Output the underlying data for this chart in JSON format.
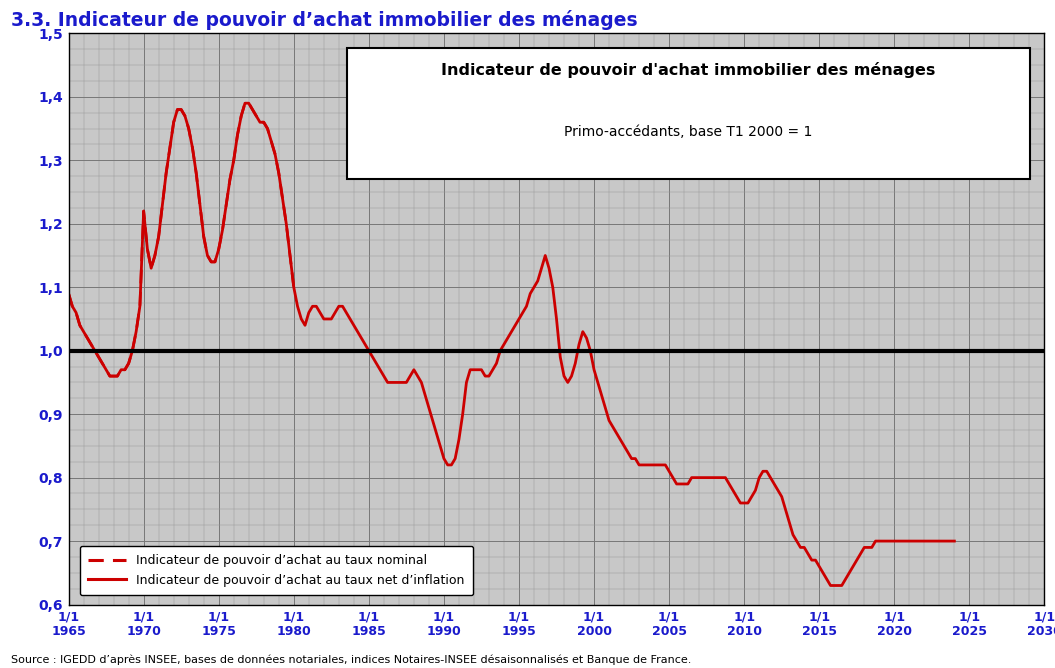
{
  "title_main": "3.3. Indicateur de pouvoir d’achat immobilier des ménages",
  "box_title": "Indicateur de pouvoir d'achat immobilier des ménages",
  "box_subtitle": "Primo-accédants, base T1 2000 = 1",
  "source": "Source : IGEDD d’après INSEE, bases de données notariales, indices Notaires-INSEE désaisonnalisés et Banque de France.",
  "xlim": [
    1965.0,
    2030.0
  ],
  "ylim": [
    0.6,
    1.5
  ],
  "yticks": [
    0.6,
    0.7,
    0.8,
    0.9,
    1.0,
    1.1,
    1.2,
    1.3,
    1.4,
    1.5
  ],
  "xticks": [
    1965,
    1970,
    1975,
    1980,
    1985,
    1990,
    1995,
    2000,
    2005,
    2010,
    2015,
    2020,
    2025,
    2030
  ],
  "background_color": "#c8c8c8",
  "line_color": "#cc0000",
  "hline_color": "#000000",
  "legend_label_dashed": "Indicateur de pouvoir d’achat au taux nominal",
  "legend_label_solid": "Indicateur de pouvoir d’achat au taux net d’inflation",
  "nominal_x": [
    1965.0,
    1965.25,
    1965.5,
    1965.75,
    1966.0,
    1966.25,
    1966.5,
    1966.75,
    1967.0,
    1967.25,
    1967.5,
    1967.75,
    1968.0,
    1968.25,
    1968.5,
    1968.75,
    1969.0,
    1969.25,
    1969.5,
    1969.75,
    1970.0,
    1970.25,
    1970.5,
    1970.75,
    1971.0,
    1971.25,
    1971.5,
    1971.75,
    1972.0,
    1972.25,
    1972.5,
    1972.75,
    1973.0,
    1973.25,
    1973.5,
    1973.75,
    1974.0,
    1974.25,
    1974.5,
    1974.75,
    1975.0,
    1975.25,
    1975.5,
    1975.75,
    1976.0,
    1976.25,
    1976.5,
    1976.75,
    1977.0,
    1977.25,
    1977.5,
    1977.75,
    1978.0,
    1978.25,
    1978.5,
    1978.75,
    1979.0,
    1979.25,
    1979.5,
    1979.75,
    1980.0
  ],
  "nominal_y": [
    1.09,
    1.07,
    1.06,
    1.04,
    1.03,
    1.02,
    1.01,
    1.0,
    0.99,
    0.98,
    0.97,
    0.96,
    0.96,
    0.96,
    0.97,
    0.97,
    0.98,
    1.0,
    1.03,
    1.07,
    1.22,
    1.16,
    1.13,
    1.15,
    1.18,
    1.23,
    1.28,
    1.32,
    1.36,
    1.38,
    1.38,
    1.37,
    1.35,
    1.32,
    1.28,
    1.23,
    1.18,
    1.15,
    1.14,
    1.14,
    1.16,
    1.19,
    1.23,
    1.27,
    1.3,
    1.34,
    1.37,
    1.39,
    1.39,
    1.38,
    1.37,
    1.36,
    1.36,
    1.35,
    1.33,
    1.31,
    1.28,
    1.24,
    1.2,
    1.15,
    1.1
  ],
  "real_x": [
    1965.0,
    1965.25,
    1965.5,
    1965.75,
    1966.0,
    1966.25,
    1966.5,
    1966.75,
    1967.0,
    1967.25,
    1967.5,
    1967.75,
    1968.0,
    1968.25,
    1968.5,
    1968.75,
    1969.0,
    1969.25,
    1969.5,
    1969.75,
    1970.0,
    1970.25,
    1970.5,
    1970.75,
    1971.0,
    1971.25,
    1971.5,
    1971.75,
    1972.0,
    1972.25,
    1972.5,
    1972.75,
    1973.0,
    1973.25,
    1973.5,
    1973.75,
    1974.0,
    1974.25,
    1974.5,
    1974.75,
    1975.0,
    1975.25,
    1975.5,
    1975.75,
    1976.0,
    1976.25,
    1976.5,
    1976.75,
    1977.0,
    1977.25,
    1977.5,
    1977.75,
    1978.0,
    1978.25,
    1978.5,
    1978.75,
    1979.0,
    1979.25,
    1979.5,
    1979.75,
    1980.0,
    1980.25,
    1980.5,
    1980.75,
    1981.0,
    1981.25,
    1981.5,
    1981.75,
    1982.0,
    1982.25,
    1982.5,
    1982.75,
    1983.0,
    1983.25,
    1983.5,
    1983.75,
    1984.0,
    1984.25,
    1984.5,
    1984.75,
    1985.0,
    1985.25,
    1985.5,
    1985.75,
    1986.0,
    1986.25,
    1986.5,
    1986.75,
    1987.0,
    1987.25,
    1987.5,
    1987.75,
    1988.0,
    1988.25,
    1988.5,
    1988.75,
    1989.0,
    1989.25,
    1989.5,
    1989.75,
    1990.0,
    1990.25,
    1990.5,
    1990.75,
    1991.0,
    1991.25,
    1991.5,
    1991.75,
    1992.0,
    1992.25,
    1992.5,
    1992.75,
    1993.0,
    1993.25,
    1993.5,
    1993.75,
    1994.0,
    1994.25,
    1994.5,
    1994.75,
    1995.0,
    1995.25,
    1995.5,
    1995.75,
    1996.0,
    1996.25,
    1996.5,
    1996.75,
    1997.0,
    1997.25,
    1997.5,
    1997.75,
    1998.0,
    1998.25,
    1998.5,
    1998.75,
    1999.0,
    1999.25,
    1999.5,
    1999.75,
    2000.0,
    2000.25,
    2000.5,
    2000.75,
    2001.0,
    2001.25,
    2001.5,
    2001.75,
    2002.0,
    2002.25,
    2002.5,
    2002.75,
    2003.0,
    2003.25,
    2003.5,
    2003.75,
    2004.0,
    2004.25,
    2004.5,
    2004.75,
    2005.0,
    2005.25,
    2005.5,
    2005.75,
    2006.0,
    2006.25,
    2006.5,
    2006.75,
    2007.0,
    2007.25,
    2007.5,
    2007.75,
    2008.0,
    2008.25,
    2008.5,
    2008.75,
    2009.0,
    2009.25,
    2009.5,
    2009.75,
    2010.0,
    2010.25,
    2010.5,
    2010.75,
    2011.0,
    2011.25,
    2011.5,
    2011.75,
    2012.0,
    2012.25,
    2012.5,
    2012.75,
    2013.0,
    2013.25,
    2013.5,
    2013.75,
    2014.0,
    2014.25,
    2014.5,
    2014.75,
    2015.0,
    2015.25,
    2015.5,
    2015.75,
    2016.0,
    2016.25,
    2016.5,
    2016.75,
    2017.0,
    2017.25,
    2017.5,
    2017.75,
    2018.0,
    2018.25,
    2018.5,
    2018.75,
    2019.0,
    2019.25,
    2019.5,
    2019.75,
    2020.0,
    2020.25,
    2020.5,
    2020.75,
    2021.0,
    2021.25,
    2021.5,
    2021.75,
    2022.0,
    2022.25,
    2022.5,
    2022.75,
    2023.0,
    2023.25,
    2023.5,
    2023.75,
    2024.0
  ],
  "real_y": [
    1.09,
    1.07,
    1.06,
    1.04,
    1.03,
    1.02,
    1.01,
    1.0,
    0.99,
    0.98,
    0.97,
    0.96,
    0.96,
    0.96,
    0.97,
    0.97,
    0.98,
    1.0,
    1.03,
    1.07,
    1.22,
    1.16,
    1.13,
    1.15,
    1.18,
    1.23,
    1.28,
    1.32,
    1.36,
    1.38,
    1.38,
    1.37,
    1.35,
    1.32,
    1.28,
    1.23,
    1.18,
    1.15,
    1.14,
    1.14,
    1.16,
    1.19,
    1.23,
    1.27,
    1.3,
    1.34,
    1.37,
    1.39,
    1.39,
    1.38,
    1.37,
    1.36,
    1.36,
    1.35,
    1.33,
    1.31,
    1.28,
    1.24,
    1.2,
    1.15,
    1.1,
    1.07,
    1.05,
    1.04,
    1.06,
    1.07,
    1.07,
    1.06,
    1.05,
    1.05,
    1.05,
    1.06,
    1.07,
    1.07,
    1.06,
    1.05,
    1.04,
    1.03,
    1.02,
    1.01,
    1.0,
    0.99,
    0.98,
    0.97,
    0.96,
    0.95,
    0.95,
    0.95,
    0.95,
    0.95,
    0.95,
    0.96,
    0.97,
    0.96,
    0.95,
    0.93,
    0.91,
    0.89,
    0.87,
    0.85,
    0.83,
    0.82,
    0.82,
    0.83,
    0.86,
    0.9,
    0.95,
    0.97,
    0.97,
    0.97,
    0.97,
    0.96,
    0.96,
    0.97,
    0.98,
    1.0,
    1.01,
    1.02,
    1.03,
    1.04,
    1.05,
    1.06,
    1.07,
    1.09,
    1.1,
    1.11,
    1.13,
    1.15,
    1.13,
    1.1,
    1.05,
    0.99,
    0.96,
    0.95,
    0.96,
    0.98,
    1.01,
    1.03,
    1.02,
    1.0,
    0.97,
    0.95,
    0.93,
    0.91,
    0.89,
    0.88,
    0.87,
    0.86,
    0.85,
    0.84,
    0.83,
    0.83,
    0.82,
    0.82,
    0.82,
    0.82,
    0.82,
    0.82,
    0.82,
    0.82,
    0.81,
    0.8,
    0.79,
    0.79,
    0.79,
    0.79,
    0.8,
    0.8,
    0.8,
    0.8,
    0.8,
    0.8,
    0.8,
    0.8,
    0.8,
    0.8,
    0.79,
    0.78,
    0.77,
    0.76,
    0.76,
    0.76,
    0.77,
    0.78,
    0.8,
    0.81,
    0.81,
    0.8,
    0.79,
    0.78,
    0.77,
    0.75,
    0.73,
    0.71,
    0.7,
    0.69,
    0.69,
    0.68,
    0.67,
    0.67,
    0.66,
    0.65,
    0.64,
    0.63,
    0.63,
    0.63,
    0.63,
    0.64,
    0.65,
    0.66,
    0.67,
    0.68,
    0.69,
    0.69,
    0.69,
    0.7,
    0.7,
    0.7,
    0.7,
    0.7,
    0.7,
    0.7,
    0.7,
    0.7,
    0.7,
    0.7,
    0.7,
    0.7,
    0.7,
    0.7,
    0.7,
    0.7,
    0.7,
    0.7,
    0.7,
    0.7,
    0.7
  ]
}
